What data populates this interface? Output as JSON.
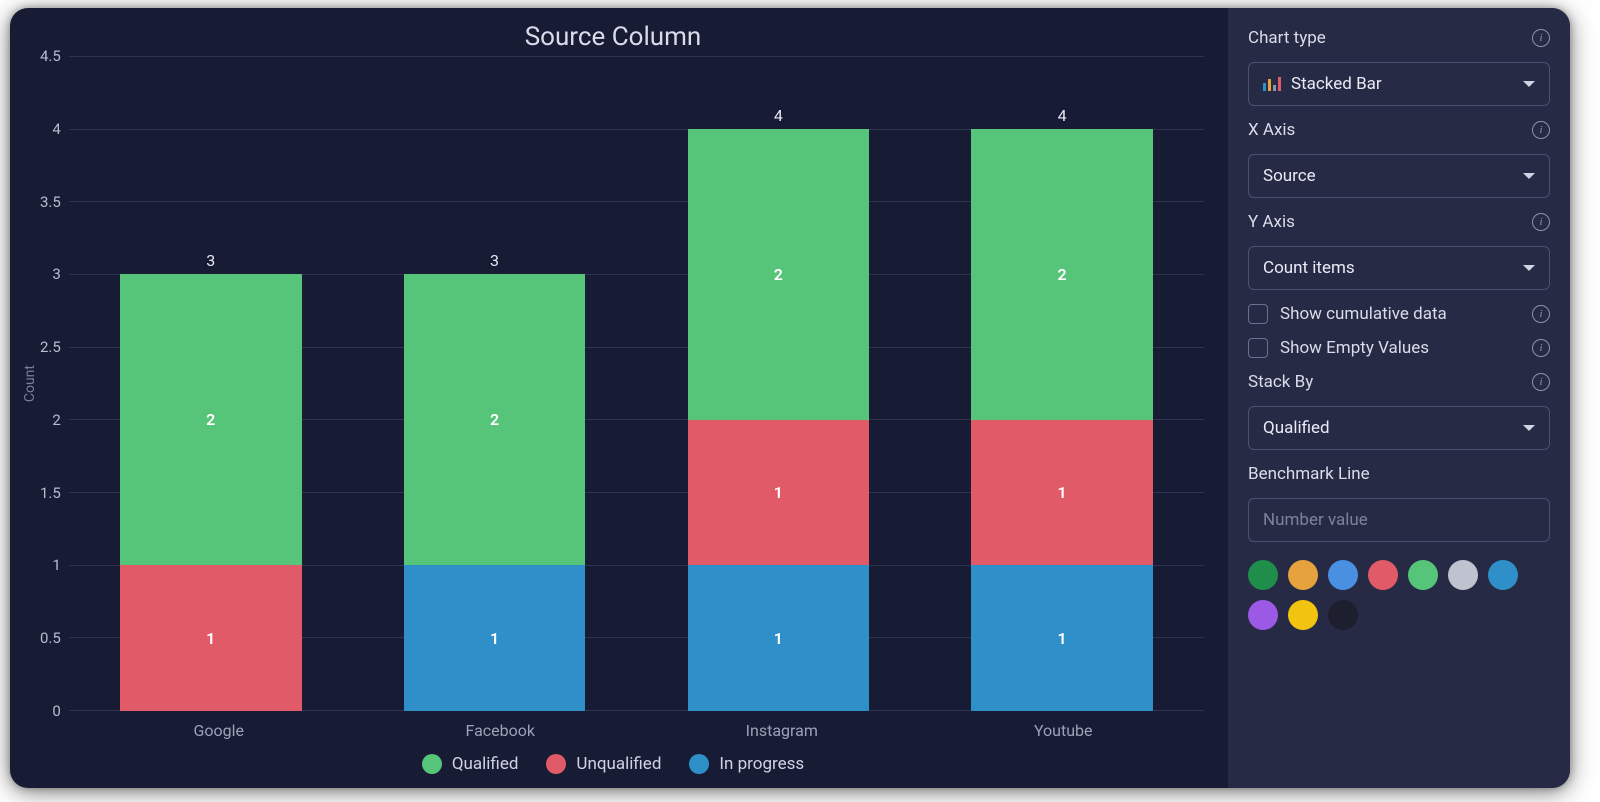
{
  "chart": {
    "title": "Source Column",
    "type": "stacked-bar",
    "y_axis": {
      "title": "Count",
      "min": 0,
      "max": 4.5,
      "tick_step": 0.5,
      "ticks": [
        "4.5",
        "4",
        "3.5",
        "3",
        "2.5",
        "2",
        "1.5",
        "1",
        "0.5",
        "0"
      ],
      "grid_color": "#2f3350"
    },
    "categories": [
      "Google",
      "Facebook",
      "Instagram",
      "Youtube"
    ],
    "series": [
      {
        "name": "Qualified",
        "color": "#57c579"
      },
      {
        "name": "Unqualified",
        "color": "#e05a67"
      },
      {
        "name": "In progress",
        "color": "#2f8fc8"
      }
    ],
    "stacks": [
      {
        "total": 3,
        "segments": [
          {
            "series": "Unqualified",
            "value": 1
          },
          {
            "series": "Qualified",
            "value": 2
          }
        ]
      },
      {
        "total": 3,
        "segments": [
          {
            "series": "In progress",
            "value": 1
          },
          {
            "series": "Qualified",
            "value": 2
          }
        ]
      },
      {
        "total": 4,
        "segments": [
          {
            "series": "In progress",
            "value": 1
          },
          {
            "series": "Unqualified",
            "value": 1
          },
          {
            "series": "Qualified",
            "value": 2
          }
        ]
      },
      {
        "total": 4,
        "segments": [
          {
            "series": "In progress",
            "value": 1
          },
          {
            "series": "Unqualified",
            "value": 1
          },
          {
            "series": "Qualified",
            "value": 2
          }
        ]
      }
    ],
    "bar_width_pct": 64,
    "background_color": "#181b34",
    "value_label_color": "#ffffff",
    "axis_label_color": "#9ca1b8"
  },
  "sidebar": {
    "chart_type": {
      "label": "Chart type",
      "value": "Stacked Bar"
    },
    "x_axis": {
      "label": "X Axis",
      "value": "Source"
    },
    "y_axis": {
      "label": "Y Axis",
      "value": "Count items"
    },
    "cumulative": {
      "label": "Show cumulative data",
      "checked": false
    },
    "empty": {
      "label": "Show Empty Values",
      "checked": false
    },
    "stack_by": {
      "label": "Stack By",
      "value": "Qualified"
    },
    "benchmark": {
      "label": "Benchmark Line",
      "placeholder": "Number value"
    },
    "palette": [
      "#1e8e4a",
      "#e6a23c",
      "#4a90e2",
      "#e05a67",
      "#57c579",
      "#bfc3d0",
      "#2f8fc8",
      "#9b59e6",
      "#f1c40f",
      "#1d1f2e"
    ],
    "mini_bar_colors": [
      "#2f8fc8",
      "#e6a23c",
      "#8e93ab",
      "#e05a67"
    ]
  }
}
